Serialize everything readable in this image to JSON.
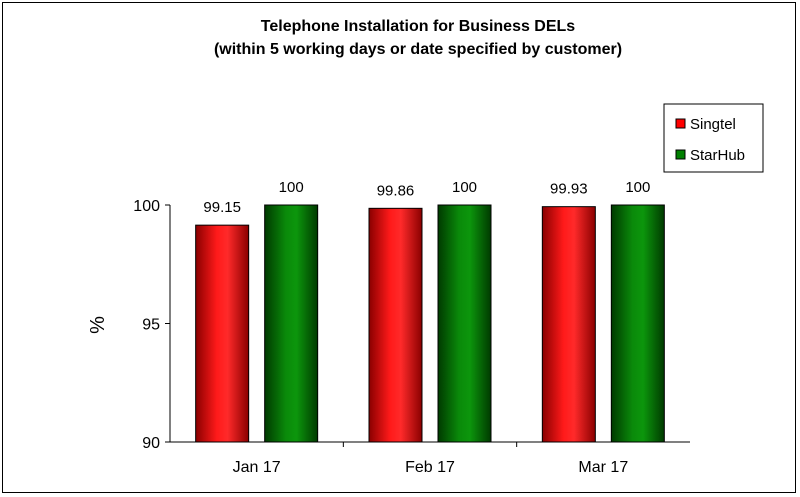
{
  "chart_data": {
    "type": "bar",
    "title": "Telephone Installation for Business DELs",
    "subtitle": "(within 5 working days or date specified by customer)",
    "xlabel": "",
    "ylabel": "%",
    "ylim": [
      90,
      100
    ],
    "yticks": [
      "90",
      "95",
      "100"
    ],
    "categories": [
      "Jan 17",
      "Feb 17",
      "Mar 17"
    ],
    "series": [
      {
        "name": "Singtel",
        "values": [
          99.15,
          99.86,
          99.93
        ],
        "labels": [
          "99.15",
          "99.86",
          "99.93"
        ],
        "color": "#ff0000"
      },
      {
        "name": "StarHub",
        "values": [
          100,
          100,
          100
        ],
        "labels": [
          "100",
          "100",
          "100"
        ],
        "color": "#008000"
      }
    ],
    "legend_position": "right",
    "grid": false
  }
}
